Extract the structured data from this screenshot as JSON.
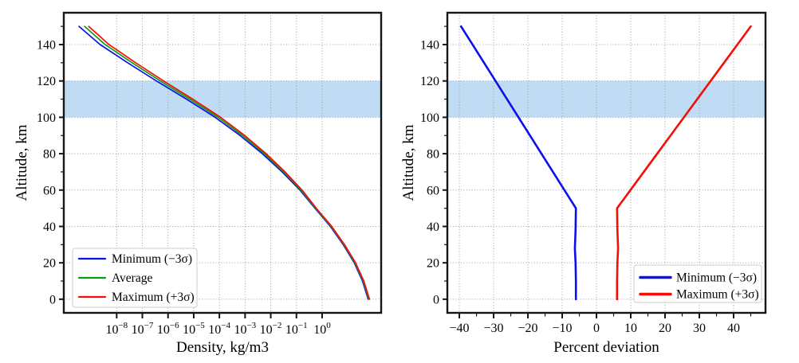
{
  "figure": {
    "background": "#ffffff",
    "band_color": "#bfdcf4",
    "grid_color": "#9c9c9c",
    "spine_color": "#151515",
    "series_colors": {
      "minimum": "#0b10ee",
      "average": "#0f9b0f",
      "maximum": "#f50d06"
    }
  },
  "chart_data": [
    {
      "id": "density-profile",
      "type": "line",
      "xscale": "log10",
      "title": "",
      "xlabel": "Density, kg/m3",
      "ylabel": "Altitude, km",
      "xlim_log10": [
        -10.06,
        2.3
      ],
      "ylim": [
        -7.5,
        157.5
      ],
      "xticks_exponents": [
        -8,
        -7,
        -6,
        -5,
        -4,
        -3,
        -2,
        -1,
        0
      ],
      "yticks": [
        0,
        20,
        40,
        60,
        80,
        100,
        120,
        140
      ],
      "yminor": [
        10,
        30,
        50,
        70,
        90,
        110,
        130,
        150
      ],
      "grid": "dotted",
      "band": {
        "ymin": 100,
        "ymax": 120,
        "label": "altitude-band-100-120km"
      },
      "legend_position": "lower-left",
      "series": [
        {
          "name": "Minimum (−3σ)",
          "color_key": "minimum",
          "width": 1.7,
          "points_log10x_alt": [
            [
              -9.468,
              150
            ],
            [
              -8.645,
              140
            ],
            [
              -7.573,
              130
            ],
            [
              -6.452,
              120
            ],
            [
              -5.281,
              110
            ],
            [
              -4.162,
              100
            ],
            [
              -3.194,
              90
            ],
            [
              -2.326,
              80
            ],
            [
              -1.559,
              70
            ],
            [
              -0.863,
              60
            ],
            [
              -0.277,
              50
            ],
            [
              0.323,
              40
            ],
            [
              0.823,
              30
            ],
            [
              1.253,
              20
            ],
            [
              1.573,
              10
            ],
            [
              1.793,
              0
            ]
          ]
        },
        {
          "name": "Average",
          "color_key": "average",
          "width": 1.7,
          "points_log10x_alt": [
            [
              -9.25,
              150
            ],
            [
              -8.45,
              140
            ],
            [
              -7.4,
              130
            ],
            [
              -6.3,
              120
            ],
            [
              -5.15,
              110
            ],
            [
              -4.05,
              100
            ],
            [
              -3.1,
              90
            ],
            [
              -2.25,
              80
            ],
            [
              -1.5,
              70
            ],
            [
              -0.82,
              60
            ],
            [
              -0.25,
              50
            ],
            [
              0.35,
              40
            ],
            [
              0.85,
              30
            ],
            [
              1.28,
              20
            ],
            [
              1.6,
              10
            ],
            [
              1.82,
              0
            ]
          ]
        },
        {
          "name": "Maximum (+3σ)",
          "color_key": "maximum",
          "width": 1.7,
          "points_log10x_alt": [
            [
              -9.089,
              150
            ],
            [
              -8.301,
              140
            ],
            [
              -7.263,
              130
            ],
            [
              -6.175,
              120
            ],
            [
              -5.038,
              110
            ],
            [
              -3.952,
              100
            ],
            [
              -3.015,
              90
            ],
            [
              -2.179,
              80
            ],
            [
              -1.444,
              70
            ],
            [
              -0.779,
              60
            ],
            [
              -0.225,
              50
            ],
            [
              0.375,
              40
            ],
            [
              0.875,
              30
            ],
            [
              1.305,
              20
            ],
            [
              1.625,
              10
            ],
            [
              1.845,
              0
            ]
          ]
        }
      ]
    },
    {
      "id": "percent-deviation",
      "type": "line",
      "xscale": "linear",
      "title": "",
      "xlabel": "Percent deviation",
      "ylabel": "Altitude, km",
      "xlim": [
        -43.5,
        49.3
      ],
      "ylim": [
        -7.5,
        157.5
      ],
      "xticks": [
        -40,
        -30,
        -20,
        -10,
        0,
        10,
        20,
        30,
        40
      ],
      "xminor": [
        -35,
        -25,
        -15,
        -5,
        5,
        15,
        25,
        35,
        45
      ],
      "yticks": [
        0,
        20,
        40,
        60,
        80,
        100,
        120,
        140
      ],
      "yminor": [
        10,
        30,
        50,
        70,
        90,
        110,
        130,
        150
      ],
      "grid": "dotted",
      "band": {
        "ymin": 100,
        "ymax": 120,
        "label": "altitude-band-100-120km"
      },
      "legend_position": "lower-right",
      "series": [
        {
          "name": "Minimum (−3σ)",
          "color_key": "minimum",
          "width": 2.6,
          "points_x_alt": [
            [
              -39.5,
              150
            ],
            [
              -36.15,
              140
            ],
            [
              -32.8,
              130
            ],
            [
              -29.45,
              120
            ],
            [
              -26.1,
              110
            ],
            [
              -22.75,
              100
            ],
            [
              -19.4,
              90
            ],
            [
              -16.05,
              80
            ],
            [
              -12.7,
              70
            ],
            [
              -9.35,
              60
            ],
            [
              -6,
              50
            ],
            [
              -6.1,
              38
            ],
            [
              -6.3,
              28
            ],
            [
              -6.1,
              20
            ],
            [
              -6,
              10
            ],
            [
              -6,
              0
            ]
          ]
        },
        {
          "name": "Maximum (+3σ)",
          "color_key": "maximum",
          "width": 2.6,
          "points_x_alt": [
            [
              45,
              150
            ],
            [
              41.1,
              140
            ],
            [
              37.2,
              130
            ],
            [
              33.3,
              120
            ],
            [
              29.4,
              110
            ],
            [
              25.5,
              100
            ],
            [
              21.6,
              90
            ],
            [
              17.7,
              80
            ],
            [
              13.8,
              70
            ],
            [
              9.9,
              60
            ],
            [
              6,
              50
            ],
            [
              6.1,
              38
            ],
            [
              6.3,
              28
            ],
            [
              6.1,
              20
            ],
            [
              6,
              10
            ],
            [
              6,
              0
            ]
          ]
        }
      ]
    }
  ]
}
